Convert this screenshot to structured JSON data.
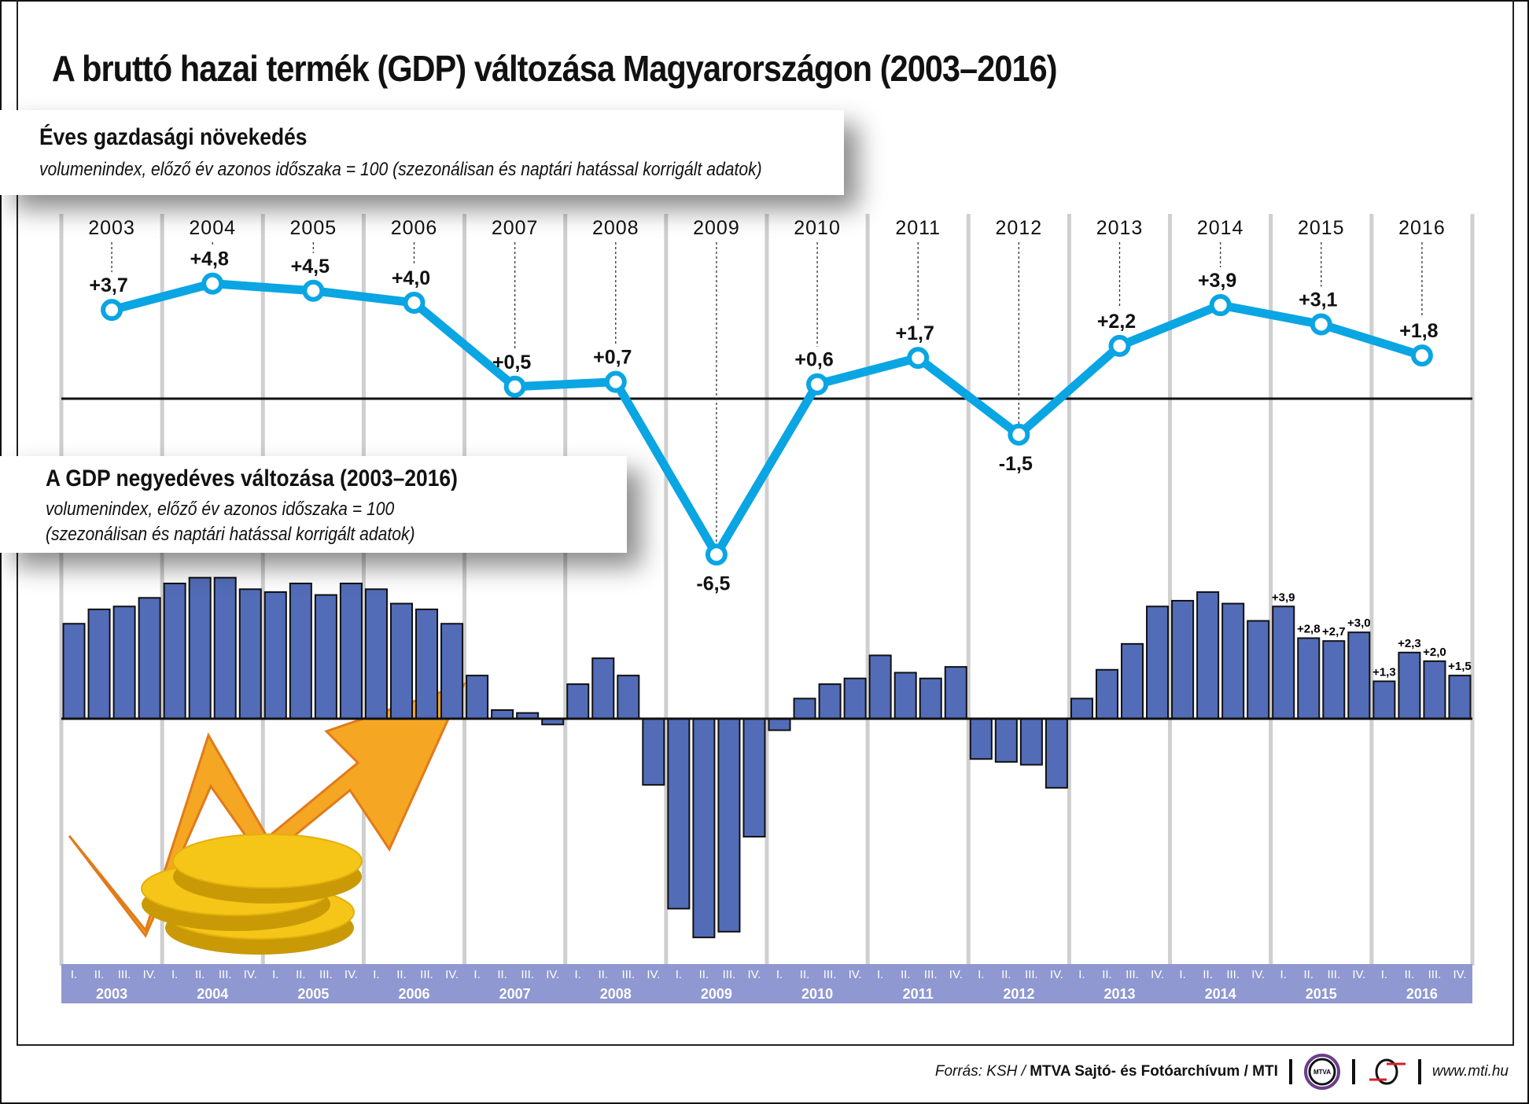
{
  "title": "A bruttó hazai termék (GDP) változása Magyarországon (2003–2016)",
  "colors": {
    "line": "#0aa5e3",
    "bars": "#536cb8",
    "axis_band": "#8f98d0",
    "grid": "#cfcfcf"
  },
  "chart_data": [
    {
      "type": "line",
      "title": "Éves gazdasági növekedés",
      "subtitle": "volumenindex, előző év azonos időszaka = 100 (szezonálisan és naptári hatással korrigált adatok)",
      "categories": [
        "2003",
        "2004",
        "2005",
        "2006",
        "2007",
        "2008",
        "2009",
        "2010",
        "2011",
        "2012",
        "2013",
        "2014",
        "2015",
        "2016"
      ],
      "values": [
        3.7,
        4.8,
        4.5,
        4.0,
        0.5,
        0.7,
        -6.5,
        0.6,
        1.7,
        -1.5,
        2.2,
        3.9,
        3.1,
        1.8
      ],
      "labels": [
        "+3,7",
        "+4,8",
        "+4,5",
        "+4,0",
        "+0,5",
        "+0,7",
        "-6,5",
        "+0,6",
        "+1,7",
        "-1,5",
        "+2,2",
        "+3,9",
        "+3,1",
        "+1,8"
      ],
      "zero_line": true
    },
    {
      "type": "bar",
      "title": "A GDP negyedéves változása (2003–2016)",
      "subtitle_1": "volumenindex, előző év azonos időszaka = 100",
      "subtitle_2": "(szezonálisan és naptári hatással korrigált adatok)",
      "years": [
        "2003",
        "2004",
        "2005",
        "2006",
        "2007",
        "2008",
        "2009",
        "2010",
        "2011",
        "2012",
        "2013",
        "2014",
        "2015",
        "2016"
      ],
      "quarters": [
        "I.",
        "II.",
        "III.",
        "IV."
      ],
      "values": [
        3.3,
        3.8,
        3.9,
        4.2,
        4.7,
        4.9,
        4.9,
        4.5,
        4.4,
        4.7,
        4.3,
        4.7,
        4.5,
        4.0,
        3.8,
        3.3,
        1.5,
        0.3,
        0.2,
        -0.2,
        1.2,
        2.1,
        1.5,
        -2.3,
        -6.6,
        -7.6,
        -7.4,
        -4.1,
        -0.4,
        0.7,
        1.2,
        1.4,
        2.2,
        1.6,
        1.4,
        1.8,
        -1.4,
        -1.5,
        -1.6,
        -2.4,
        0.7,
        1.7,
        2.6,
        3.9,
        4.1,
        4.4,
        4.0,
        3.4,
        3.9,
        2.8,
        2.7,
        3.0,
        1.3,
        2.3,
        2.0,
        1.5
      ],
      "data_labels": {
        "48": "+3,9",
        "49": "+2,8",
        "50": "+2,7",
        "51": "+3,0",
        "52": "+1,3",
        "53": "+2,3",
        "54": "+2,0",
        "55": "+1,5"
      }
    }
  ],
  "footer": {
    "source_prefix": "Forrás: KSH / ",
    "source_bold": "MTVA Sajtó- és Fotóarchívum / MTI",
    "logo_text": "MTVA",
    "url": "www.mti.hu"
  }
}
